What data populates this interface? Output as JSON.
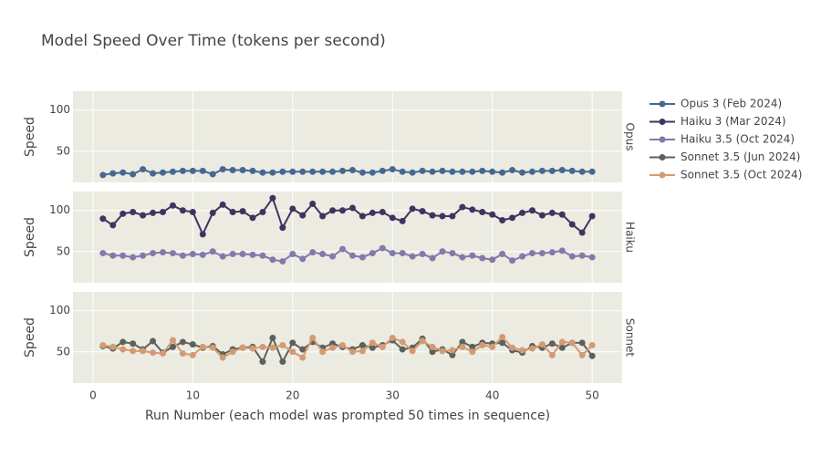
{
  "chart_data": {
    "type": "line",
    "title": "Model Speed Over Time (tokens per second)",
    "x_label": "Run Number (each model was prompted 50 times in sequence)",
    "x": [
      1,
      2,
      3,
      4,
      5,
      6,
      7,
      8,
      9,
      10,
      11,
      12,
      13,
      14,
      15,
      16,
      17,
      18,
      19,
      20,
      21,
      22,
      23,
      24,
      25,
      26,
      27,
      28,
      29,
      30,
      31,
      32,
      33,
      34,
      35,
      36,
      37,
      38,
      39,
      40,
      41,
      42,
      43,
      44,
      45,
      46,
      47,
      48,
      49,
      50
    ],
    "xlim": [
      -2,
      53
    ],
    "xticks": [
      0,
      10,
      20,
      30,
      40,
      50
    ],
    "grid": true,
    "legend": "right",
    "panels": [
      {
        "label": "Opus",
        "y_label": "Speed",
        "ylim": [
          12,
          123
        ],
        "yticks": [
          50,
          100
        ],
        "series": [
          {
            "name": "Opus 3 (Feb 2024)",
            "color": "#456892",
            "values": [
              21,
              23,
              24,
              22,
              28,
              23,
              24,
              25,
              26,
              26,
              26,
              22,
              28,
              27,
              27,
              26,
              24,
              24,
              25,
              25,
              25,
              25,
              25,
              25,
              26,
              27,
              24,
              24,
              26,
              28,
              25,
              24,
              26,
              25,
              26,
              25,
              25,
              25,
              26,
              25,
              24,
              27,
              24,
              25,
              26,
              26,
              27,
              26,
              25,
              25
            ]
          }
        ]
      },
      {
        "label": "Haiku",
        "y_label": "Speed",
        "ylim": [
          12,
          123
        ],
        "yticks": [
          50,
          100
        ],
        "series": [
          {
            "name": "Haiku 3 (Mar 2024)",
            "color": "#41335f",
            "values": [
              90,
              82,
              96,
              98,
              94,
              97,
              98,
              106,
              100,
              98,
              71,
              97,
              107,
              98,
              99,
              91,
              98,
              115,
              79,
              102,
              94,
              108,
              93,
              100,
              100,
              103,
              93,
              97,
              98,
              91,
              87,
              102,
              99,
              94,
              93,
              93,
              104,
              101,
              98,
              95,
              88,
              91,
              97,
              100,
              94,
              97,
              95,
              83,
              73,
              93
            ]
          },
          {
            "name": "Haiku 3.5 (Oct 2024)",
            "color": "#8479ab",
            "values": [
              48,
              45,
              45,
              43,
              45,
              48,
              49,
              48,
              45,
              47,
              46,
              50,
              44,
              47,
              47,
              46,
              45,
              40,
              38,
              47,
              41,
              49,
              47,
              44,
              53,
              45,
              43,
              48,
              54,
              48,
              48,
              44,
              47,
              42,
              50,
              48,
              43,
              45,
              42,
              40,
              47,
              39,
              44,
              48,
              48,
              49,
              51,
              44,
              45,
              43
            ]
          }
        ]
      },
      {
        "label": "Sonnet",
        "y_label": "Speed",
        "ylim": [
          12,
          123
        ],
        "yticks": [
          50,
          100
        ],
        "series": [
          {
            "name": "Sonnet 3.5 (Jun 2024)",
            "color": "#5e615b",
            "values": [
              57,
              54,
              62,
              60,
              53,
              63,
              49,
              56,
              62,
              59,
              55,
              57,
              47,
              53,
              55,
              56,
              38,
              67,
              38,
              61,
              53,
              62,
              55,
              60,
              56,
              53,
              58,
              55,
              58,
              64,
              53,
              55,
              66,
              50,
              53,
              46,
              62,
              56,
              61,
              60,
              61,
              52,
              49,
              57,
              55,
              60,
              55,
              61,
              61,
              45
            ]
          },
          {
            "name": "Sonnet 3.5 (Oct 2024)",
            "color": "#d39b72",
            "values": [
              58,
              56,
              53,
              51,
              51,
              49,
              48,
              64,
              48,
              46,
              56,
              55,
              43,
              50,
              55,
              54,
              56,
              55,
              58,
              50,
              43,
              67,
              50,
              55,
              58,
              50,
              51,
              61,
              56,
              67,
              62,
              51,
              63,
              56,
              51,
              52,
              56,
              50,
              58,
              56,
              68,
              55,
              52,
              54,
              59,
              46,
              62,
              61,
              46,
              58
            ]
          }
        ]
      }
    ]
  }
}
